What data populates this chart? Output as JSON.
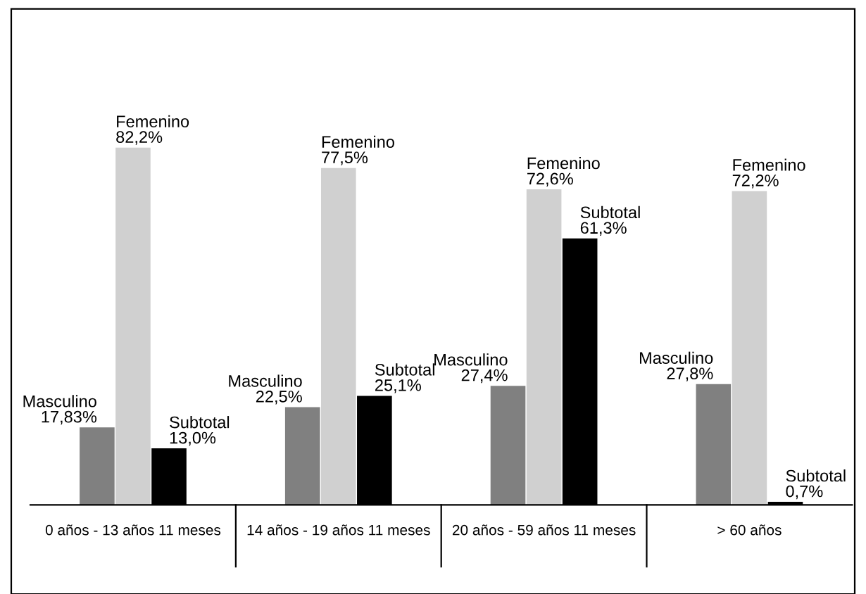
{
  "chart_data": {
    "type": "bar",
    "categories": [
      "0 años - 13 años 11 meses",
      "14 años - 19 años 11 meses",
      "20 años - 59 años 11 meses",
      "> 60 años"
    ],
    "series": [
      {
        "name": "Masculino",
        "color": "#808080",
        "values": [
          17.83,
          22.5,
          27.4,
          27.8
        ],
        "value_labels": [
          "17,83%",
          "22,5%",
          "27,4%",
          "27,8%"
        ]
      },
      {
        "name": "Femenino",
        "color": "#d0d0d0",
        "values": [
          82.2,
          77.5,
          72.6,
          72.2
        ],
        "value_labels": [
          "82,2%",
          "77,5%",
          "72,6%",
          "72,2%"
        ]
      },
      {
        "name": "Subtotal",
        "color": "#000000",
        "values": [
          13.0,
          25.1,
          61.3,
          0.7
        ],
        "value_labels": [
          "13,0%",
          "25,1%",
          "61,3%",
          "0,7%"
        ]
      }
    ],
    "legend": false,
    "grid": false
  }
}
